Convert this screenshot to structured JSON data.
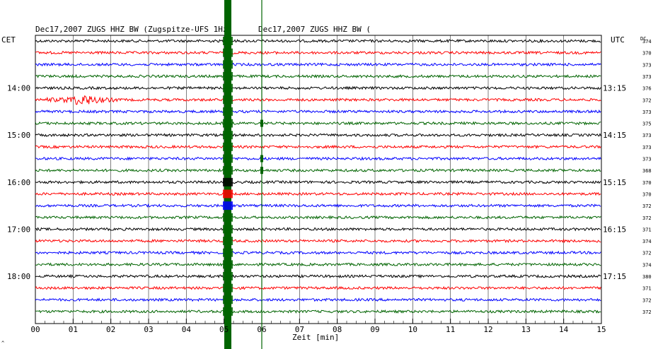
{
  "chart_data": {
    "type": "line",
    "header_left": "Dec17,2007   ZUGS HHZ BW (Zugspitze-UFS 1Hz)",
    "header_right": "Dec17,2007   ZUGS HHZ BW (",
    "left_axis_label": "CET",
    "right_axis_label": "UTC",
    "dc_label": "DC",
    "xlabel": "Zeit [min]",
    "x_ticks": [
      "00",
      "01",
      "02",
      "03",
      "04",
      "05",
      "06",
      "07",
      "08",
      "09",
      "10",
      "11",
      "12",
      "13",
      "14",
      "15"
    ],
    "xlim": [
      0,
      15
    ],
    "left_time_labels": [
      {
        "row": 4,
        "label": "14:00"
      },
      {
        "row": 8,
        "label": "15:00"
      },
      {
        "row": 12,
        "label": "16:00"
      },
      {
        "row": 16,
        "label": "17:00"
      },
      {
        "row": 20,
        "label": "18:00"
      }
    ],
    "right_time_labels": [
      {
        "row": 4,
        "label": "13:15"
      },
      {
        "row": 8,
        "label": "14:15"
      },
      {
        "row": 12,
        "label": "15:15"
      },
      {
        "row": 16,
        "label": "16:15"
      },
      {
        "row": 20,
        "label": "17:15"
      }
    ],
    "dc_values": [
      "374",
      "370",
      "373",
      "373",
      "376",
      "372",
      "373",
      "375",
      "373",
      "373",
      "373",
      "368",
      "370",
      "370",
      "372",
      "372",
      "371",
      "374",
      "372",
      "374",
      "380",
      "371",
      "372",
      "372"
    ],
    "trace_colors": [
      "#000000",
      "#ff0000",
      "#0000ff",
      "#006400"
    ],
    "trace_count": 24,
    "events": [
      {
        "label": "strong vertical burst",
        "minute": 5.1,
        "rows": "all"
      },
      {
        "label": "local signal",
        "minute": 0.3,
        "minute_end": 2.2,
        "row": 5
      }
    ],
    "marker_lines": [
      5.1,
      6.0
    ],
    "footer_mark": "^"
  }
}
